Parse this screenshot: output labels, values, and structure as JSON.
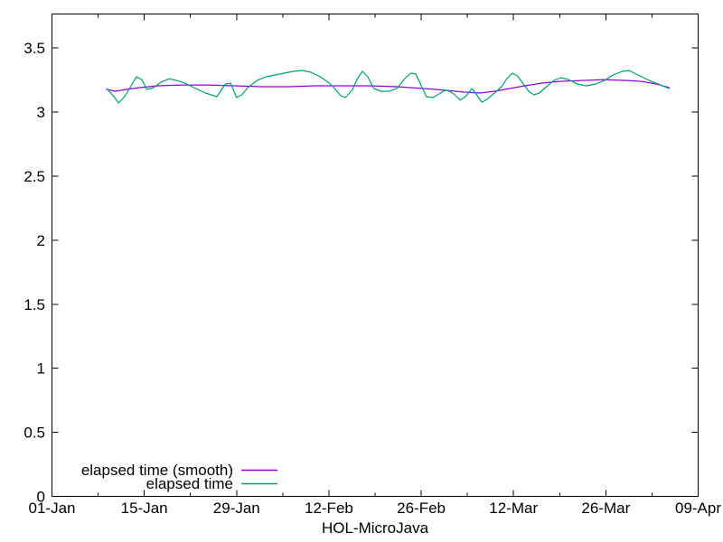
{
  "chart_data": {
    "type": "line",
    "title": "",
    "xlabel": "HOL-MicroJava",
    "ylabel": "",
    "grid": "off",
    "legend_position": "bottom-left-inside",
    "x_axis": {
      "tick_labels": [
        "01-Jan",
        "15-Jan",
        "29-Jan",
        "12-Feb",
        "26-Feb",
        "12-Mar",
        "26-Mar",
        "09-Apr"
      ],
      "tick_days": [
        0,
        14,
        28,
        42,
        56,
        70,
        84,
        98
      ],
      "minor_tick_days": [
        7,
        21,
        35,
        49,
        63,
        77,
        91
      ],
      "range_days": [
        0,
        98
      ]
    },
    "y_axis": {
      "tick_labels": [
        "0",
        "0.5",
        "1",
        "1.5",
        "2",
        "2.5",
        "3",
        "3.5"
      ],
      "tick_values": [
        0,
        0.5,
        1,
        1.5,
        2,
        2.5,
        3,
        3.5
      ],
      "range": [
        0,
        3.766
      ]
    },
    "series": [
      {
        "name": "elapsed time (smooth)",
        "color": "#9400d3",
        "points": [
          [
            8.3,
            3.177
          ],
          [
            9.6,
            3.163
          ],
          [
            11.3,
            3.177
          ],
          [
            13.3,
            3.191
          ],
          [
            16.1,
            3.205
          ],
          [
            19.5,
            3.212
          ],
          [
            23.6,
            3.212
          ],
          [
            27.7,
            3.205
          ],
          [
            31.8,
            3.198
          ],
          [
            35.9,
            3.198
          ],
          [
            40.0,
            3.205
          ],
          [
            44.1,
            3.205
          ],
          [
            48.2,
            3.205
          ],
          [
            52.3,
            3.198
          ],
          [
            56.4,
            3.184
          ],
          [
            59.8,
            3.17
          ],
          [
            62.6,
            3.156
          ],
          [
            64.9,
            3.149
          ],
          [
            67.1,
            3.163
          ],
          [
            69.4,
            3.184
          ],
          [
            71.7,
            3.205
          ],
          [
            74.2,
            3.226
          ],
          [
            76.9,
            3.24
          ],
          [
            80.3,
            3.247
          ],
          [
            83.8,
            3.254
          ],
          [
            87.2,
            3.247
          ],
          [
            89.5,
            3.24
          ],
          [
            91.7,
            3.219
          ],
          [
            93.6,
            3.191
          ]
        ]
      },
      {
        "name": "elapsed time",
        "color": "#009e73",
        "points": [
          [
            8.3,
            3.184
          ],
          [
            9.4,
            3.121
          ],
          [
            10.1,
            3.071
          ],
          [
            11.0,
            3.121
          ],
          [
            12.0,
            3.205
          ],
          [
            12.8,
            3.276
          ],
          [
            13.6,
            3.255
          ],
          [
            14.4,
            3.177
          ],
          [
            15.4,
            3.191
          ],
          [
            16.5,
            3.233
          ],
          [
            17.8,
            3.261
          ],
          [
            18.9,
            3.247
          ],
          [
            20.2,
            3.226
          ],
          [
            21.5,
            3.191
          ],
          [
            23.3,
            3.149
          ],
          [
            25.0,
            3.121
          ],
          [
            26.3,
            3.219
          ],
          [
            27.1,
            3.226
          ],
          [
            28.0,
            3.114
          ],
          [
            28.8,
            3.135
          ],
          [
            29.7,
            3.191
          ],
          [
            31.1,
            3.247
          ],
          [
            32.5,
            3.276
          ],
          [
            34.5,
            3.297
          ],
          [
            36.6,
            3.318
          ],
          [
            38.0,
            3.325
          ],
          [
            39.3,
            3.311
          ],
          [
            40.7,
            3.276
          ],
          [
            42.1,
            3.226
          ],
          [
            43.0,
            3.177
          ],
          [
            43.8,
            3.128
          ],
          [
            44.5,
            3.114
          ],
          [
            45.5,
            3.17
          ],
          [
            46.4,
            3.269
          ],
          [
            47.1,
            3.318
          ],
          [
            47.9,
            3.276
          ],
          [
            48.8,
            3.184
          ],
          [
            49.9,
            3.163
          ],
          [
            51.2,
            3.163
          ],
          [
            52.3,
            3.184
          ],
          [
            53.4,
            3.255
          ],
          [
            54.4,
            3.304
          ],
          [
            55.2,
            3.297
          ],
          [
            56.0,
            3.205
          ],
          [
            56.8,
            3.121
          ],
          [
            57.8,
            3.114
          ],
          [
            58.7,
            3.142
          ],
          [
            59.6,
            3.17
          ],
          [
            60.3,
            3.163
          ],
          [
            61.1,
            3.135
          ],
          [
            61.9,
            3.093
          ],
          [
            62.7,
            3.121
          ],
          [
            63.7,
            3.184
          ],
          [
            64.4,
            3.135
          ],
          [
            65.2,
            3.078
          ],
          [
            66.0,
            3.1
          ],
          [
            67.1,
            3.149
          ],
          [
            68.2,
            3.198
          ],
          [
            69.0,
            3.261
          ],
          [
            69.8,
            3.304
          ],
          [
            70.6,
            3.283
          ],
          [
            71.5,
            3.219
          ],
          [
            72.3,
            3.163
          ],
          [
            73.1,
            3.135
          ],
          [
            73.9,
            3.149
          ],
          [
            75.0,
            3.198
          ],
          [
            76.1,
            3.247
          ],
          [
            77.2,
            3.269
          ],
          [
            78.3,
            3.255
          ],
          [
            79.7,
            3.219
          ],
          [
            81.0,
            3.205
          ],
          [
            82.4,
            3.219
          ],
          [
            83.8,
            3.247
          ],
          [
            85.1,
            3.29
          ],
          [
            86.5,
            3.318
          ],
          [
            87.5,
            3.325
          ],
          [
            88.6,
            3.297
          ],
          [
            89.7,
            3.269
          ],
          [
            90.9,
            3.24
          ],
          [
            92.0,
            3.219
          ],
          [
            92.9,
            3.198
          ],
          [
            93.6,
            3.184
          ]
        ]
      }
    ]
  }
}
